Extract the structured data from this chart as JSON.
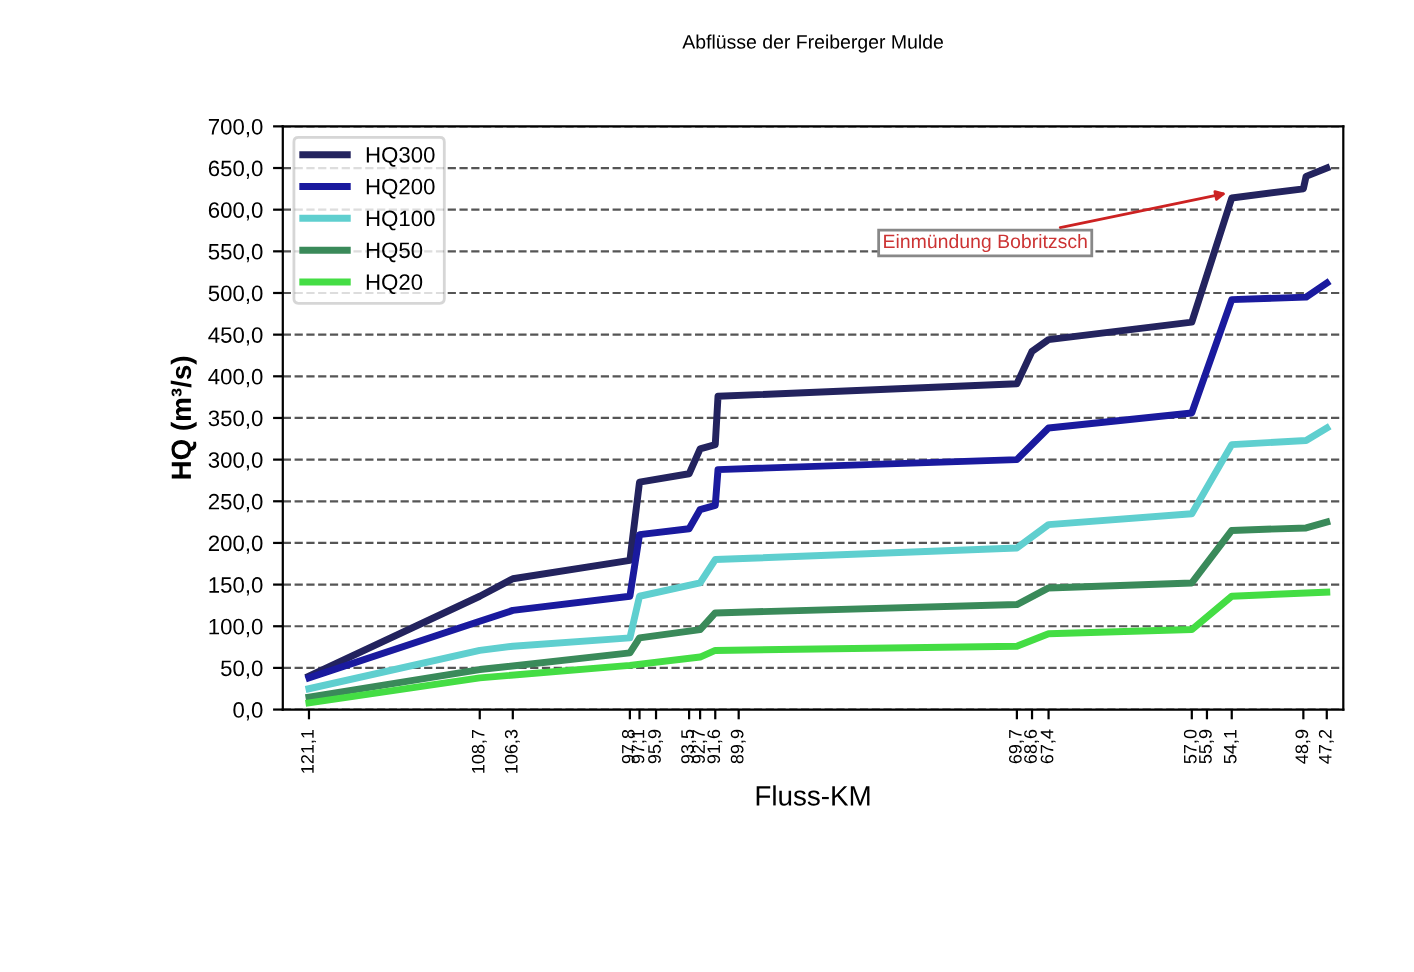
{
  "chart_data": {
    "type": "line",
    "title": "Abflüsse der Freiberger Mulde",
    "xlabel": "Fluss-KM",
    "ylabel": "HQ (m³/s)",
    "xlim": [
      123,
      46
    ],
    "ylim": [
      0,
      700
    ],
    "xticks": [
      {
        "value": 121.1,
        "label": "121,1"
      },
      {
        "value": 108.7,
        "label": "108,7"
      },
      {
        "value": 106.3,
        "label": "106,3"
      },
      {
        "value": 97.8,
        "label": "97,8"
      },
      {
        "value": 97.1,
        "label": "97,1"
      },
      {
        "value": 95.9,
        "label": "95,9"
      },
      {
        "value": 93.5,
        "label": "93,5"
      },
      {
        "value": 92.7,
        "label": "92,7"
      },
      {
        "value": 91.6,
        "label": "91,6"
      },
      {
        "value": 89.9,
        "label": "89,9"
      },
      {
        "value": 69.7,
        "label": "69,7"
      },
      {
        "value": 68.6,
        "label": "68,6"
      },
      {
        "value": 67.4,
        "label": "67,4"
      },
      {
        "value": 57.0,
        "label": "57,0"
      },
      {
        "value": 55.9,
        "label": "55,9"
      },
      {
        "value": 54.1,
        "label": "54,1"
      },
      {
        "value": 48.9,
        "label": "48,9"
      },
      {
        "value": 47.2,
        "label": "47,2"
      }
    ],
    "yticks": [
      {
        "value": 0,
        "label": "0,0"
      },
      {
        "value": 50,
        "label": "50,0"
      },
      {
        "value": 100,
        "label": "100,0"
      },
      {
        "value": 150,
        "label": "150,0"
      },
      {
        "value": 200,
        "label": "200,0"
      },
      {
        "value": 250,
        "label": "250,0"
      },
      {
        "value": 300,
        "label": "300,0"
      },
      {
        "value": 350,
        "label": "350,0"
      },
      {
        "value": 400,
        "label": "400,0"
      },
      {
        "value": 450,
        "label": "450,0"
      },
      {
        "value": 500,
        "label": "500,0"
      },
      {
        "value": 550,
        "label": "550,0"
      },
      {
        "value": 600,
        "label": "600,0"
      },
      {
        "value": 650,
        "label": "650,0"
      },
      {
        "value": 700,
        "label": "700,0"
      }
    ],
    "grid": "y",
    "legend": "top left",
    "marker": "none",
    "line_style": "solid",
    "annotations": [
      {
        "text": "Einmündung Bobritzsch",
        "x": 54.1,
        "y": 621
      }
    ],
    "series": [
      {
        "name": "HQ300",
        "color": "#23235e",
        "x": [
          121.1,
          108.7,
          106.3,
          97.8,
          97.1,
          93.5,
          92.7,
          91.6,
          91.4,
          69.7,
          68.6,
          67.4,
          57.0,
          54.1,
          48.9,
          48.7,
          47.2
        ],
        "values": [
          40,
          136,
          157,
          179,
          273,
          283,
          313,
          318,
          376,
          391,
          430,
          444,
          465,
          614,
          625,
          640,
          650
        ]
      },
      {
        "name": "HQ200",
        "color": "#1a1a9e",
        "x": [
          121.1,
          108.7,
          106.3,
          97.8,
          97.1,
          93.5,
          92.7,
          91.6,
          91.4,
          69.7,
          67.4,
          57.0,
          54.1,
          48.7,
          47.2
        ],
        "values": [
          38,
          106,
          119,
          136,
          210,
          217,
          240,
          245,
          288,
          300,
          338,
          356,
          492,
          495,
          512
        ]
      },
      {
        "name": "HQ100",
        "color": "#5fcfcf",
        "x": [
          121.1,
          108.7,
          106.3,
          97.8,
          97.1,
          92.7,
          91.6,
          69.7,
          67.4,
          57.0,
          54.1,
          48.7,
          47.2
        ],
        "values": [
          25,
          71,
          76,
          86,
          136,
          152,
          180,
          194,
          222,
          235,
          318,
          323,
          338
        ]
      },
      {
        "name": "HQ50",
        "color": "#3a8a5a",
        "x": [
          121.1,
          108.7,
          97.8,
          97.1,
          92.7,
          91.6,
          69.7,
          67.4,
          57.0,
          54.1,
          48.7,
          47.2
        ],
        "values": [
          15,
          48,
          68,
          86,
          96,
          116,
          126,
          146,
          152,
          215,
          218,
          225
        ]
      },
      {
        "name": "HQ20",
        "color": "#44dd44",
        "x": [
          121.1,
          108.7,
          97.8,
          92.7,
          91.6,
          69.7,
          67.4,
          57.0,
          54.1,
          47.2
        ],
        "values": [
          8,
          38,
          53,
          63,
          71,
          76,
          91,
          96,
          136,
          141
        ]
      }
    ]
  }
}
